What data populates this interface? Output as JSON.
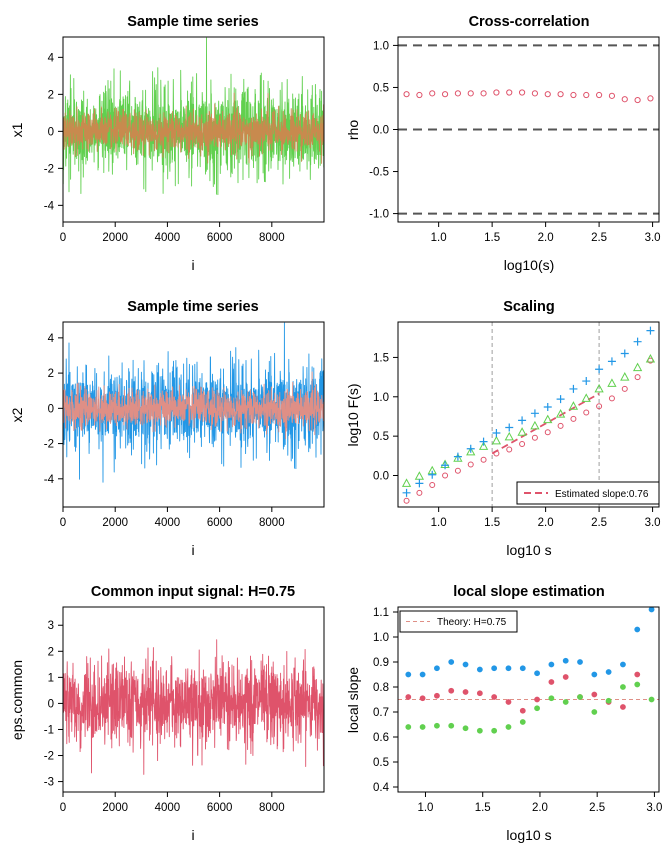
{
  "colors": {
    "green": "#61D04F",
    "orange_overlay": "#C88A4E",
    "blue": "#2297E6",
    "pink_overlay": "#DF8F86",
    "red": "#DF536B",
    "gray": "#9E9E9E",
    "dark_dash": "#555555"
  },
  "chart_data": [
    {
      "id": "x1_series",
      "type": "line",
      "title": "Sample time series",
      "xlabel": "i",
      "ylabel": "x1",
      "xlim": [
        0,
        9999
      ],
      "ylim": [
        -4.9,
        5.1
      ],
      "xticks": [
        "0",
        "2000",
        "4000",
        "6000",
        "8000"
      ],
      "yticks": [
        "-4",
        "-2",
        "0",
        "2",
        "4"
      ],
      "n_points": 10000,
      "series": [
        {
          "name": "x1",
          "color": "green",
          "approx_sd": 1.2
        },
        {
          "name": "overlay",
          "color": "orange_overlay",
          "approx_sd": 0.55
        }
      ]
    },
    {
      "id": "cross_correlation",
      "type": "scatter",
      "title": "Cross-correlation",
      "xlabel": "log10(s)",
      "ylabel": "rho",
      "xlim": [
        0.62,
        3.06
      ],
      "ylim": [
        -1.1,
        1.1
      ],
      "xticks": [
        "1.0",
        "1.5",
        "2.0",
        "2.5",
        "3.0"
      ],
      "yticks": [
        "-1.0",
        "-0.5",
        "0.0",
        "0.5",
        "1.0"
      ],
      "reference_lines": [
        -1,
        0,
        1
      ],
      "x": [
        0.7,
        0.82,
        0.94,
        1.06,
        1.18,
        1.3,
        1.42,
        1.54,
        1.66,
        1.78,
        1.9,
        2.02,
        2.14,
        2.26,
        2.38,
        2.5,
        2.62,
        2.74,
        2.86,
        2.98
      ],
      "values": [
        0.42,
        0.41,
        0.43,
        0.42,
        0.43,
        0.43,
        0.43,
        0.44,
        0.44,
        0.44,
        0.43,
        0.42,
        0.42,
        0.41,
        0.41,
        0.41,
        0.4,
        0.36,
        0.35,
        0.37
      ]
    },
    {
      "id": "x2_series",
      "type": "line",
      "title": "Sample time series",
      "xlabel": "i",
      "ylabel": "x2",
      "xlim": [
        0,
        9999
      ],
      "ylim": [
        -5.6,
        4.9
      ],
      "xticks": [
        "0",
        "2000",
        "4000",
        "6000",
        "8000"
      ],
      "yticks": [
        "-4",
        "-2",
        "0",
        "2",
        "4"
      ],
      "n_points": 10000,
      "series": [
        {
          "name": "x2",
          "color": "blue",
          "approx_sd": 1.2
        },
        {
          "name": "overlay",
          "color": "pink_overlay",
          "approx_sd": 0.55
        }
      ]
    },
    {
      "id": "scaling",
      "type": "scatter",
      "title": "Scaling",
      "xlabel": "log10 s",
      "ylabel": "log10 F(s)",
      "xlim": [
        0.62,
        3.06
      ],
      "ylim": [
        -0.4,
        1.95
      ],
      "xticks": [
        "1.0",
        "1.5",
        "2.0",
        "2.5",
        "3.0"
      ],
      "yticks": [
        "0.0",
        "0.5",
        "1.0",
        "1.5"
      ],
      "vlines": [
        1.5,
        2.5
      ],
      "x": [
        0.7,
        0.82,
        0.94,
        1.06,
        1.18,
        1.3,
        1.42,
        1.54,
        1.66,
        1.78,
        1.9,
        2.02,
        2.14,
        2.26,
        2.38,
        2.5,
        2.62,
        2.74,
        2.86,
        2.98
      ],
      "series": [
        {
          "name": "red circles",
          "marker": "circle",
          "color": "red",
          "values": [
            -0.32,
            -0.22,
            -0.12,
            0.0,
            0.06,
            0.14,
            0.2,
            0.28,
            0.33,
            0.4,
            0.48,
            0.55,
            0.63,
            0.72,
            0.8,
            0.88,
            0.98,
            1.1,
            1.25,
            1.46
          ]
        },
        {
          "name": "green triangles",
          "marker": "triangle",
          "color": "green",
          "values": [
            -0.1,
            -0.01,
            0.06,
            0.14,
            0.22,
            0.3,
            0.37,
            0.44,
            0.49,
            0.55,
            0.63,
            0.71,
            0.78,
            0.88,
            0.98,
            1.1,
            1.17,
            1.25,
            1.37,
            1.48
          ]
        },
        {
          "name": "blue plus",
          "marker": "plus",
          "color": "blue",
          "values": [
            -0.22,
            -0.1,
            0.01,
            0.13,
            0.24,
            0.34,
            0.43,
            0.54,
            0.61,
            0.7,
            0.79,
            0.87,
            0.97,
            1.1,
            1.2,
            1.35,
            1.45,
            1.55,
            1.7,
            1.84
          ]
        }
      ],
      "fit_line": {
        "x": [
          1.5,
          2.5
        ],
        "y": [
          0.28,
          1.04
        ],
        "color": "red"
      },
      "legend": {
        "label": "Estimated slope:0.76",
        "position": "bottom-right"
      }
    },
    {
      "id": "common_input",
      "type": "line",
      "title": "Common input signal: H=0.75",
      "xlabel": "i",
      "ylabel": "eps.common",
      "xlim": [
        0,
        9999
      ],
      "ylim": [
        -3.4,
        3.7
      ],
      "xticks": [
        "0",
        "2000",
        "4000",
        "6000",
        "8000"
      ],
      "yticks": [
        "-3",
        "-2",
        "-1",
        "0",
        "1",
        "2",
        "3"
      ],
      "n_points": 10000,
      "series": [
        {
          "name": "eps.common",
          "color": "red",
          "approx_sd": 0.8
        }
      ]
    },
    {
      "id": "local_slope",
      "type": "scatter",
      "title": "local slope estimation",
      "xlabel": "log10 s",
      "ylabel": "local slope",
      "xlim": [
        0.76,
        3.04
      ],
      "ylim": [
        0.38,
        1.12
      ],
      "xticks": [
        "1.0",
        "1.5",
        "2.0",
        "2.5",
        "3.0"
      ],
      "yticks": [
        "0.4",
        "0.5",
        "0.6",
        "0.7",
        "0.8",
        "0.9",
        "1.0",
        "1.1"
      ],
      "hline": 0.75,
      "x": [
        0.85,
        0.975,
        1.1,
        1.225,
        1.35,
        1.475,
        1.6,
        1.725,
        1.85,
        1.975,
        2.1,
        2.225,
        2.35,
        2.475,
        2.6,
        2.725,
        2.85,
        2.975
      ],
      "series": [
        {
          "name": "blue",
          "color": "blue",
          "values": [
            0.85,
            0.85,
            0.875,
            0.9,
            0.89,
            0.87,
            0.875,
            0.875,
            0.875,
            0.855,
            0.89,
            0.905,
            0.9,
            0.85,
            0.86,
            0.89,
            1.03,
            1.11
          ]
        },
        {
          "name": "red",
          "color": "red",
          "values": [
            0.76,
            0.755,
            0.765,
            0.785,
            0.78,
            0.775,
            0.76,
            0.74,
            0.705,
            0.75,
            0.82,
            0.84,
            0.76,
            0.77,
            0.74,
            0.72,
            0.85,
            null
          ]
        },
        {
          "name": "green",
          "color": "green",
          "values": [
            0.64,
            0.64,
            0.645,
            0.645,
            0.635,
            0.625,
            0.625,
            0.64,
            0.66,
            0.715,
            0.755,
            0.74,
            0.76,
            0.7,
            0.745,
            0.8,
            0.81,
            0.75
          ]
        }
      ],
      "legend": {
        "label": "Theory: H=0.75",
        "position": "top-left"
      }
    }
  ]
}
